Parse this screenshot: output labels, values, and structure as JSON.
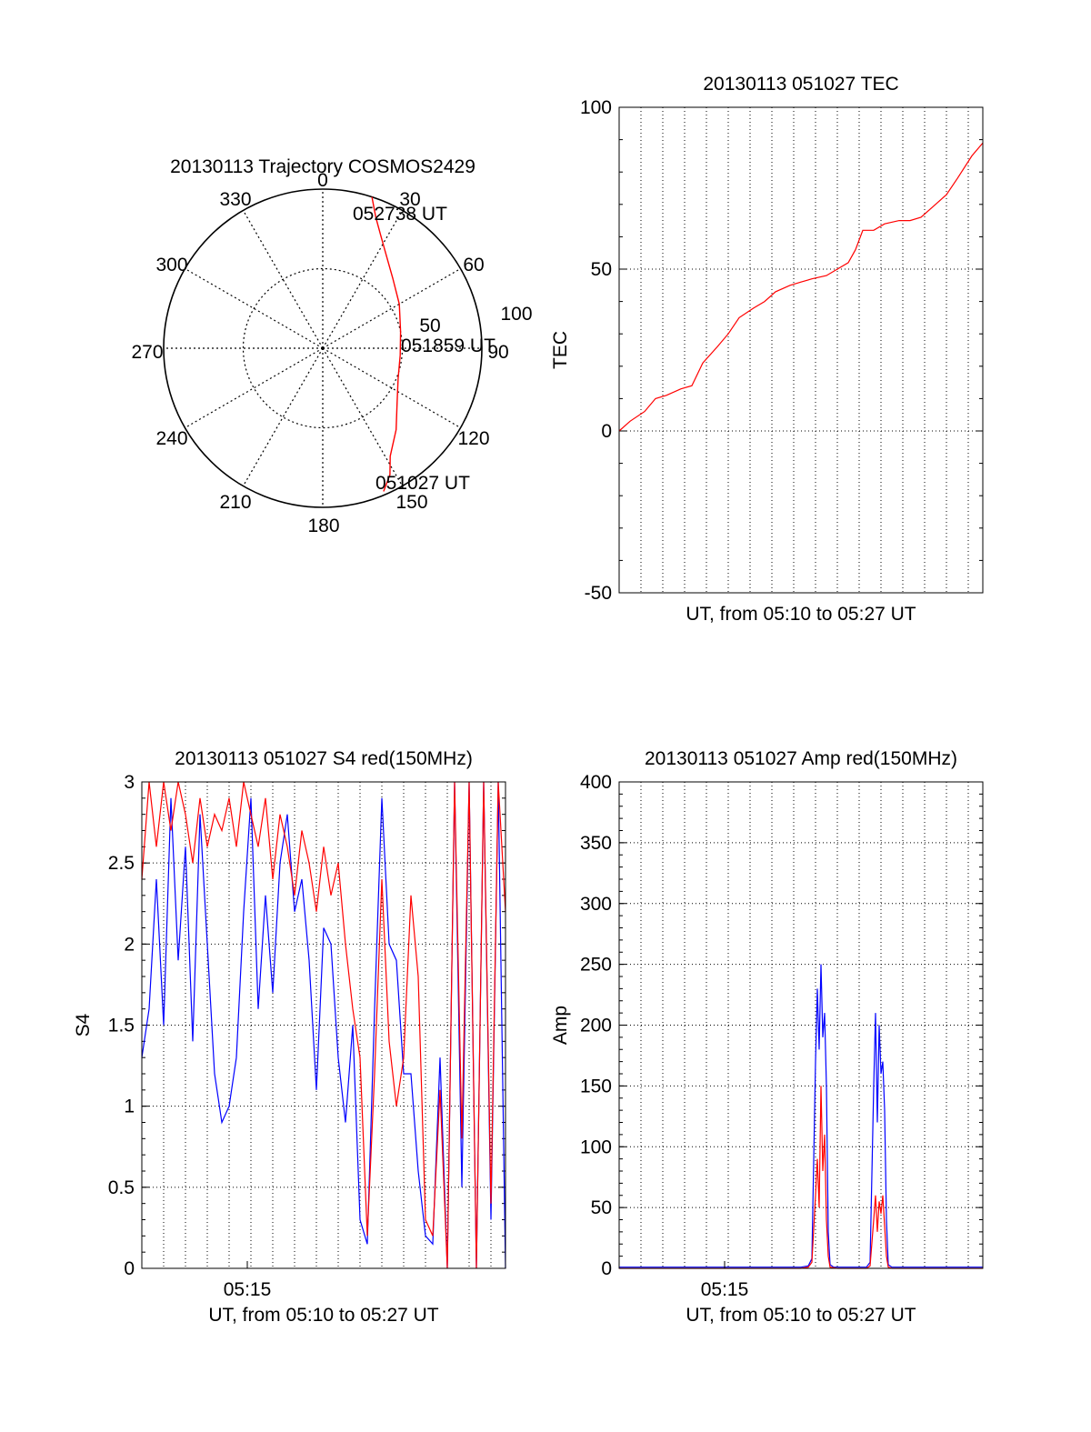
{
  "colors": {
    "red": "#ff0000",
    "blue": "#0000ff",
    "axis": "#000000"
  },
  "chart_data": [
    {
      "id": "trajectory",
      "type": "polar",
      "title": "20130113 Trajectory COSMOS2429",
      "azimuth_labels": [
        "0",
        "30",
        "60",
        "90",
        "120",
        "150",
        "180",
        "210",
        "240",
        "270",
        "300",
        "330"
      ],
      "radial_labels": [
        "50",
        "100"
      ],
      "grid": true,
      "series": [
        {
          "color": "red",
          "points": [
            {
              "az": 18,
              "el": 0
            },
            {
              "az": 22,
              "el": 10
            },
            {
              "az": 27,
              "el": 18
            },
            {
              "az": 34,
              "el": 26
            },
            {
              "az": 45,
              "el": 34
            },
            {
              "az": 60,
              "el": 40
            },
            {
              "az": 78,
              "el": 45
            },
            {
              "az": 95,
              "el": 46
            },
            {
              "az": 112,
              "el": 44
            },
            {
              "az": 126,
              "el": 38
            },
            {
              "az": 138,
              "el": 28
            },
            {
              "az": 148,
              "el": 18
            },
            {
              "az": 152,
              "el": 9
            },
            {
              "az": 157,
              "el": 2
            }
          ]
        }
      ],
      "annotations": [
        {
          "text": "052738 UT",
          "az": 20,
          "el": 2
        },
        {
          "text": "051859 UT",
          "az": 93,
          "el": 48
        },
        {
          "text": "051027 UT",
          "az": 151,
          "el": 5
        }
      ]
    },
    {
      "id": "tec",
      "type": "line",
      "title": "20130113 051027 TEC",
      "xlabel": "UT, from 05:10 to 05:27 UT",
      "ylabel": "TEC",
      "ylim": [
        -50,
        100
      ],
      "yticks": [
        -50,
        0,
        50,
        100
      ],
      "xlim": [
        0,
        1
      ],
      "grid": true,
      "series": [
        {
          "color": "red",
          "x": [
            0,
            0.03,
            0.07,
            0.1,
            0.13,
            0.17,
            0.2,
            0.23,
            0.27,
            0.3,
            0.33,
            0.37,
            0.4,
            0.43,
            0.47,
            0.5,
            0.53,
            0.57,
            0.6,
            0.63,
            0.65,
            0.67,
            0.7,
            0.73,
            0.77,
            0.8,
            0.83,
            0.87,
            0.9,
            0.93,
            0.97,
            1.0
          ],
          "y": [
            0,
            3,
            6,
            10,
            11,
            13,
            14,
            21,
            26,
            30,
            35,
            38,
            40,
            43,
            45,
            46,
            47,
            48,
            50,
            52,
            56,
            62,
            62,
            64,
            65,
            65,
            66,
            70,
            73,
            78,
            85,
            89
          ]
        }
      ]
    },
    {
      "id": "s4",
      "type": "line",
      "title": "20130113 051027 S4 red(150MHz)",
      "xlabel": "UT, from 05:10 to 05:27 UT",
      "ylabel": "S4",
      "ylim": [
        0,
        3
      ],
      "yticks": [
        0,
        0.5,
        1,
        1.5,
        2,
        2.5,
        3
      ],
      "xtick_labels": [
        {
          "text": "05:15",
          "x": 0.29
        }
      ],
      "xlim": [
        0,
        1
      ],
      "grid": true,
      "series": [
        {
          "color": "blue",
          "x": [
            0.0,
            0.02,
            0.04,
            0.06,
            0.08,
            0.1,
            0.12,
            0.14,
            0.16,
            0.18,
            0.2,
            0.22,
            0.24,
            0.26,
            0.28,
            0.3,
            0.32,
            0.34,
            0.36,
            0.38,
            0.4,
            0.42,
            0.44,
            0.46,
            0.48,
            0.5,
            0.52,
            0.54,
            0.56,
            0.58,
            0.6,
            0.62,
            0.64,
            0.66,
            0.68,
            0.7,
            0.72,
            0.74,
            0.76,
            0.78,
            0.8,
            0.82,
            0.84,
            0.86,
            0.88,
            0.9,
            0.92,
            0.94,
            0.96,
            0.98,
            1.0
          ],
          "y": [
            1.3,
            1.6,
            2.4,
            1.5,
            2.9,
            1.9,
            2.6,
            1.4,
            2.8,
            2.0,
            1.2,
            0.9,
            1.0,
            1.3,
            2.2,
            2.9,
            1.6,
            2.3,
            1.7,
            2.5,
            2.8,
            2.2,
            2.4,
            1.9,
            1.1,
            2.1,
            2.0,
            1.3,
            0.9,
            1.5,
            0.3,
            0.15,
            1.6,
            2.9,
            2.0,
            1.9,
            1.2,
            1.2,
            0.6,
            0.2,
            0.15,
            1.3,
            0.0,
            3.0,
            0.5,
            3.0,
            0.0,
            3.0,
            0.3,
            3.0,
            0.0
          ]
        },
        {
          "color": "red",
          "x": [
            0.0,
            0.02,
            0.04,
            0.06,
            0.08,
            0.1,
            0.12,
            0.14,
            0.16,
            0.18,
            0.2,
            0.22,
            0.24,
            0.26,
            0.28,
            0.3,
            0.32,
            0.34,
            0.36,
            0.38,
            0.4,
            0.42,
            0.44,
            0.46,
            0.48,
            0.5,
            0.52,
            0.54,
            0.56,
            0.58,
            0.6,
            0.62,
            0.64,
            0.66,
            0.68,
            0.7,
            0.72,
            0.74,
            0.76,
            0.78,
            0.8,
            0.82,
            0.84,
            0.86,
            0.88,
            0.9,
            0.92,
            0.94,
            0.96,
            0.98,
            1.0
          ],
          "y": [
            2.4,
            3.0,
            2.6,
            3.0,
            2.7,
            3.0,
            2.8,
            2.5,
            2.9,
            2.6,
            2.8,
            2.7,
            2.9,
            2.6,
            3.0,
            2.8,
            2.6,
            2.9,
            2.4,
            2.8,
            2.6,
            2.3,
            2.7,
            2.5,
            2.2,
            2.6,
            2.3,
            2.5,
            2.0,
            1.6,
            1.3,
            0.2,
            1.2,
            2.4,
            1.4,
            1.0,
            1.3,
            2.3,
            1.8,
            0.3,
            0.2,
            1.1,
            0.0,
            3.0,
            0.8,
            3.0,
            0.0,
            3.0,
            0.4,
            3.0,
            2.2
          ]
        }
      ]
    },
    {
      "id": "amp",
      "type": "line",
      "title": "20130113 051027 Amp red(150MHz)",
      "xlabel": "UT, from 05:10 to 05:27 UT",
      "ylabel": "Amp",
      "ylim": [
        0,
        400
      ],
      "yticks": [
        0,
        50,
        100,
        150,
        200,
        250,
        300,
        350,
        400
      ],
      "xtick_labels": [
        {
          "text": "05:15",
          "x": 0.29
        }
      ],
      "xlim": [
        0,
        1
      ],
      "grid": true,
      "series": [
        {
          "color": "blue",
          "x": [
            0.0,
            0.1,
            0.2,
            0.3,
            0.4,
            0.5,
            0.52,
            0.53,
            0.54,
            0.545,
            0.55,
            0.555,
            0.56,
            0.565,
            0.57,
            0.575,
            0.58,
            0.59,
            0.6,
            0.65,
            0.68,
            0.69,
            0.7,
            0.705,
            0.71,
            0.715,
            0.72,
            0.725,
            0.73,
            0.735,
            0.74,
            0.75,
            0.8,
            0.9,
            1.0
          ],
          "y": [
            1,
            1,
            1,
            1,
            1,
            1,
            2,
            8,
            170,
            230,
            180,
            250,
            190,
            210,
            150,
            30,
            3,
            1,
            1,
            1,
            1,
            5,
            150,
            210,
            120,
            200,
            160,
            170,
            130,
            40,
            3,
            1,
            1,
            1,
            1
          ]
        },
        {
          "color": "red",
          "x": [
            0.0,
            0.5,
            0.52,
            0.53,
            0.54,
            0.545,
            0.55,
            0.555,
            0.56,
            0.565,
            0.57,
            0.575,
            0.58,
            0.6,
            0.68,
            0.69,
            0.7,
            0.705,
            0.71,
            0.715,
            0.72,
            0.725,
            0.73,
            0.735,
            0.74,
            0.75,
            1.0
          ],
          "y": [
            0,
            0,
            1,
            5,
            60,
            90,
            50,
            150,
            80,
            110,
            40,
            10,
            1,
            0,
            0,
            2,
            40,
            60,
            30,
            55,
            45,
            60,
            35,
            10,
            1,
            0,
            0
          ]
        }
      ]
    }
  ]
}
